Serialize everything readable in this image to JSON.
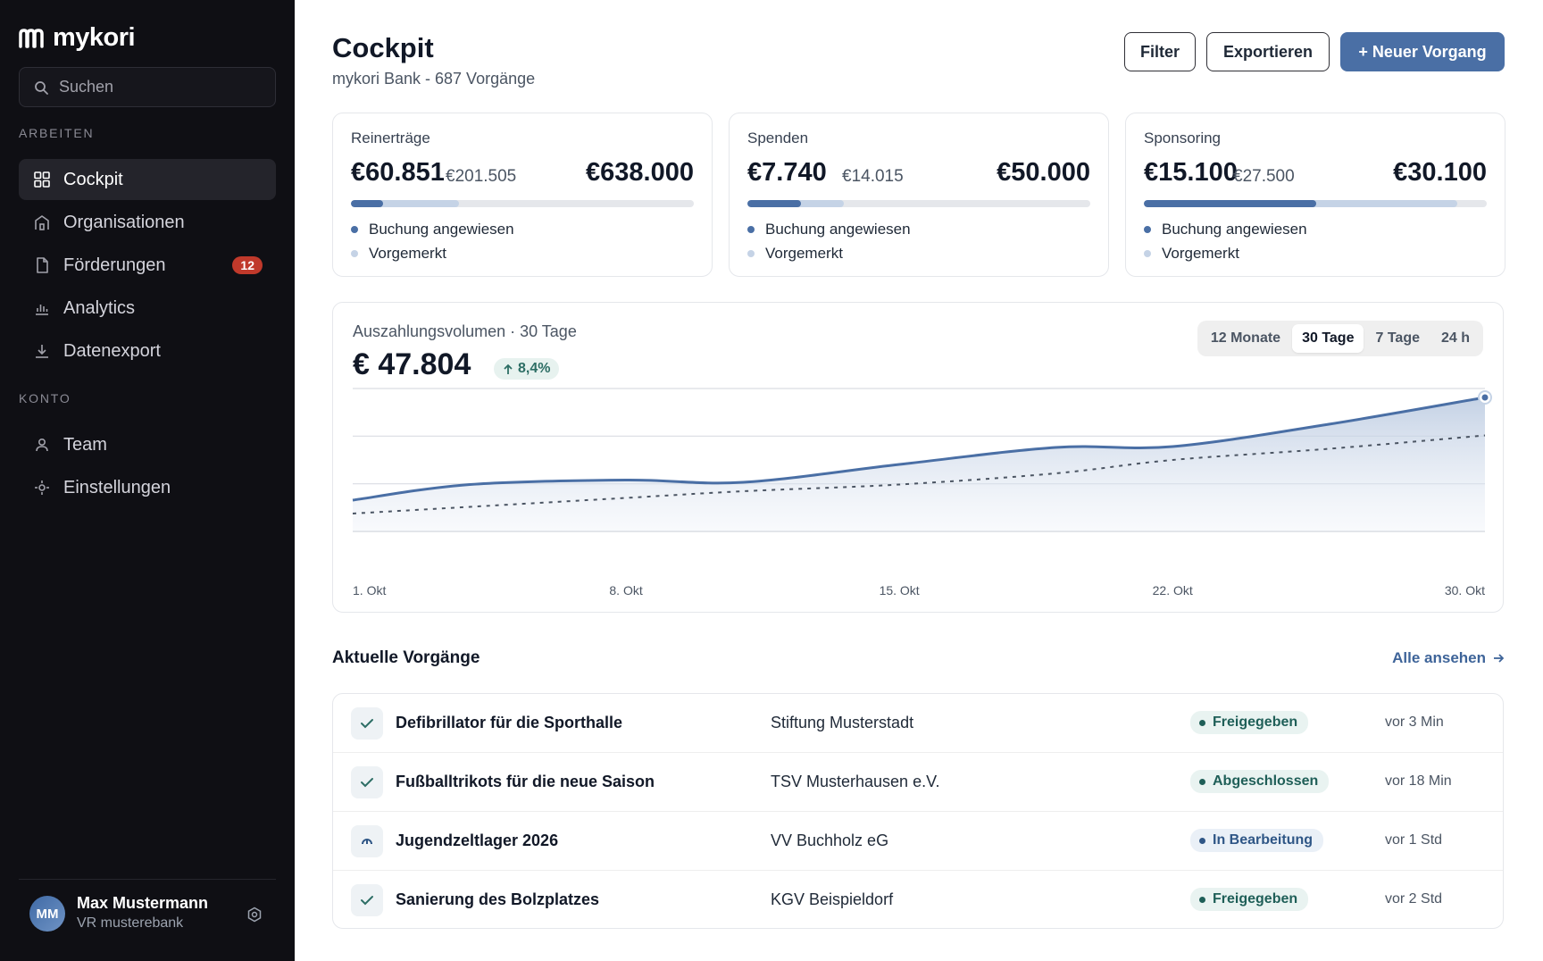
{
  "app": {
    "name": "mykori"
  },
  "sidebar": {
    "search_placeholder": "Suchen",
    "sections": {
      "work": "ARBEITEN",
      "account": "KONTO"
    },
    "items": [
      {
        "label": "Cockpit",
        "icon": "grid-icon",
        "active": true
      },
      {
        "label": "Organisationen",
        "icon": "building-icon"
      },
      {
        "label": "Förderungen",
        "icon": "document-icon",
        "badge": "12"
      },
      {
        "label": "Analytics",
        "icon": "bar-chart-icon"
      },
      {
        "label": "Datenexport",
        "icon": "download-icon"
      },
      {
        "label": "Team",
        "icon": "user-icon"
      },
      {
        "label": "Einstellungen",
        "icon": "settings-icon"
      }
    ],
    "user": {
      "initials": "MM",
      "name": "Max Mustermann",
      "org": "VR musterebank"
    }
  },
  "header": {
    "title": "Cockpit",
    "subtitle": "mykori Bank - 687 Vorgänge",
    "buttons": {
      "filter": "Filter",
      "export": "Exportieren",
      "new": "+ Neuer Vorgang"
    }
  },
  "cards": [
    {
      "label": "Reinerträge",
      "value": "€60.851",
      "secondary": "€201.505",
      "target": "€638.000",
      "booked_fraction": 0.095,
      "reserved_fraction": 0.316
    },
    {
      "label": "Spenden",
      "value": "€7.740",
      "secondary": "€14.015",
      "target": "€50.000",
      "booked_fraction": 0.155,
      "reserved_fraction": 0.28
    },
    {
      "label": "Sponsoring",
      "value": "€15.100",
      "secondary": "€27.500",
      "target": "€30.100",
      "booked_fraction": 0.502,
      "reserved_fraction": 0.914
    }
  ],
  "legend": {
    "booked": "Buchung angewiesen",
    "reserved": "Vorgemerkt"
  },
  "colors": {
    "primary": "#4a6fa5",
    "reserved": "#c5d3e6",
    "badge": "#c0392b",
    "positive": "#2d6e65"
  },
  "chart": {
    "label": "Auszahlungsvolumen · 30 Tage",
    "value": "€ 47.804",
    "change": "8,4%",
    "ranges": [
      "12 Monate",
      "30 Tage",
      "7 Tage",
      "24 h"
    ],
    "active_range": "30 Tage"
  },
  "chart_data": {
    "type": "area",
    "x": [
      1,
      4,
      8,
      11,
      15,
      19,
      22,
      26,
      30
    ],
    "x_tick_labels": [
      "1. Okt",
      "8. Okt",
      "15. Okt",
      "22. Okt",
      "30. Okt"
    ],
    "x_ticks": [
      1,
      8,
      15,
      22,
      30
    ],
    "series": [
      {
        "style": "solid",
        "values": [
          7,
          10.5,
          11.5,
          11,
          15,
          18.8,
          19,
          24,
          30
        ]
      },
      {
        "style": "dashed",
        "values": [
          4,
          5.5,
          7.5,
          9,
          10.5,
          13,
          16,
          18.5,
          21.5
        ]
      }
    ],
    "ylim": [
      0,
      32
    ],
    "grid": true
  },
  "transactions": {
    "title": "Aktuelle Vorgänge",
    "view_all": "Alle ansehen",
    "rows": [
      {
        "title": "Defibrillator für die Sporthalle",
        "org": "Stiftung Musterstadt",
        "status": "Freigegeben",
        "status_kind": "green",
        "time": "vor 3 Min",
        "icon": "check-icon"
      },
      {
        "title": "Fußballtrikots für die neue Saison",
        "org": "TSV Musterhausen e.V.",
        "status": "Abgeschlossen",
        "status_kind": "green",
        "time": "vor 18 Min",
        "icon": "check-icon"
      },
      {
        "title": "Jugendzeltlager 2026",
        "org": "VV Buchholz eG",
        "status": "In Bearbeitung",
        "status_kind": "blue",
        "time": "vor 1 Std",
        "icon": "progress-icon"
      },
      {
        "title": "Sanierung des Bolzplatzes",
        "org": "KGV Beispieldorf",
        "status": "Freigegeben",
        "status_kind": "green",
        "time": "vor 2 Std",
        "icon": "check-icon"
      }
    ]
  }
}
